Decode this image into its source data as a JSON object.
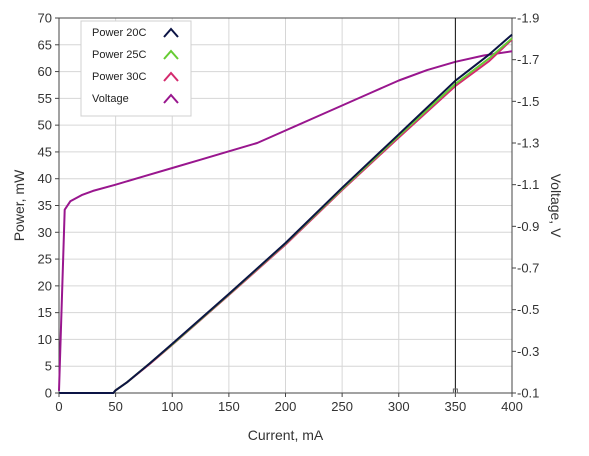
{
  "chart_data": {
    "type": "line",
    "xlabel": "Current, mA",
    "ylabel": "Power, mW",
    "y2label": "Voltage, V",
    "xlim": [
      0,
      400
    ],
    "ylim": [
      0,
      70
    ],
    "y2lim": [
      0.1,
      1.9
    ],
    "x_ticks": [
      "0",
      "50",
      "100",
      "150",
      "200",
      "250",
      "300",
      "350",
      "400"
    ],
    "y_ticks": [
      "0",
      "5",
      "10",
      "15",
      "20",
      "25",
      "30",
      "35",
      "40",
      "45",
      "50",
      "55",
      "60",
      "65",
      "70"
    ],
    "y2_ticks": [
      "0.1",
      "0.3",
      "0.5",
      "0.7",
      "0.9",
      "1.1",
      "1.3",
      "1.5",
      "1.7",
      "1.9"
    ],
    "grid": true,
    "legend_position": "top-left",
    "cursor_x": 350,
    "series": [
      {
        "name": "Power 20C",
        "axis": "left",
        "color": "#0c1445",
        "x": [
          0,
          48,
          50,
          60,
          80,
          100,
          150,
          200,
          250,
          300,
          350,
          380,
          400
        ],
        "y": [
          0,
          0,
          0.5,
          2.0,
          5.5,
          9.2,
          18.5,
          28.0,
          38.3,
          48.3,
          58.3,
          63.2,
          66.9
        ]
      },
      {
        "name": "Power 25C",
        "axis": "left",
        "color": "#66cc33",
        "x": [
          0,
          48,
          50,
          60,
          80,
          100,
          150,
          200,
          250,
          300,
          350,
          380,
          400
        ],
        "y": [
          0,
          0,
          0.5,
          2.0,
          5.5,
          9.1,
          18.4,
          27.9,
          38.1,
          48.0,
          57.7,
          62.5,
          66.2
        ]
      },
      {
        "name": "Power 30C",
        "axis": "left",
        "color": "#d42a6e",
        "x": [
          0,
          48,
          50,
          60,
          80,
          100,
          150,
          200,
          250,
          300,
          350,
          380,
          400
        ],
        "y": [
          0,
          0,
          0.5,
          2.0,
          5.4,
          9.0,
          18.3,
          27.7,
          37.9,
          47.7,
          57.3,
          62.0,
          66.0
        ]
      },
      {
        "name": "Voltage",
        "axis": "right",
        "color": "#99168e",
        "x": [
          0,
          5,
          10,
          20,
          30,
          50,
          75,
          100,
          125,
          150,
          175,
          200,
          225,
          250,
          275,
          300,
          325,
          350,
          375,
          400
        ],
        "y": [
          0.11,
          0.98,
          1.02,
          1.05,
          1.07,
          1.1,
          1.14,
          1.18,
          1.22,
          1.26,
          1.3,
          1.36,
          1.42,
          1.48,
          1.54,
          1.6,
          1.65,
          1.69,
          1.72,
          1.74
        ]
      }
    ]
  }
}
